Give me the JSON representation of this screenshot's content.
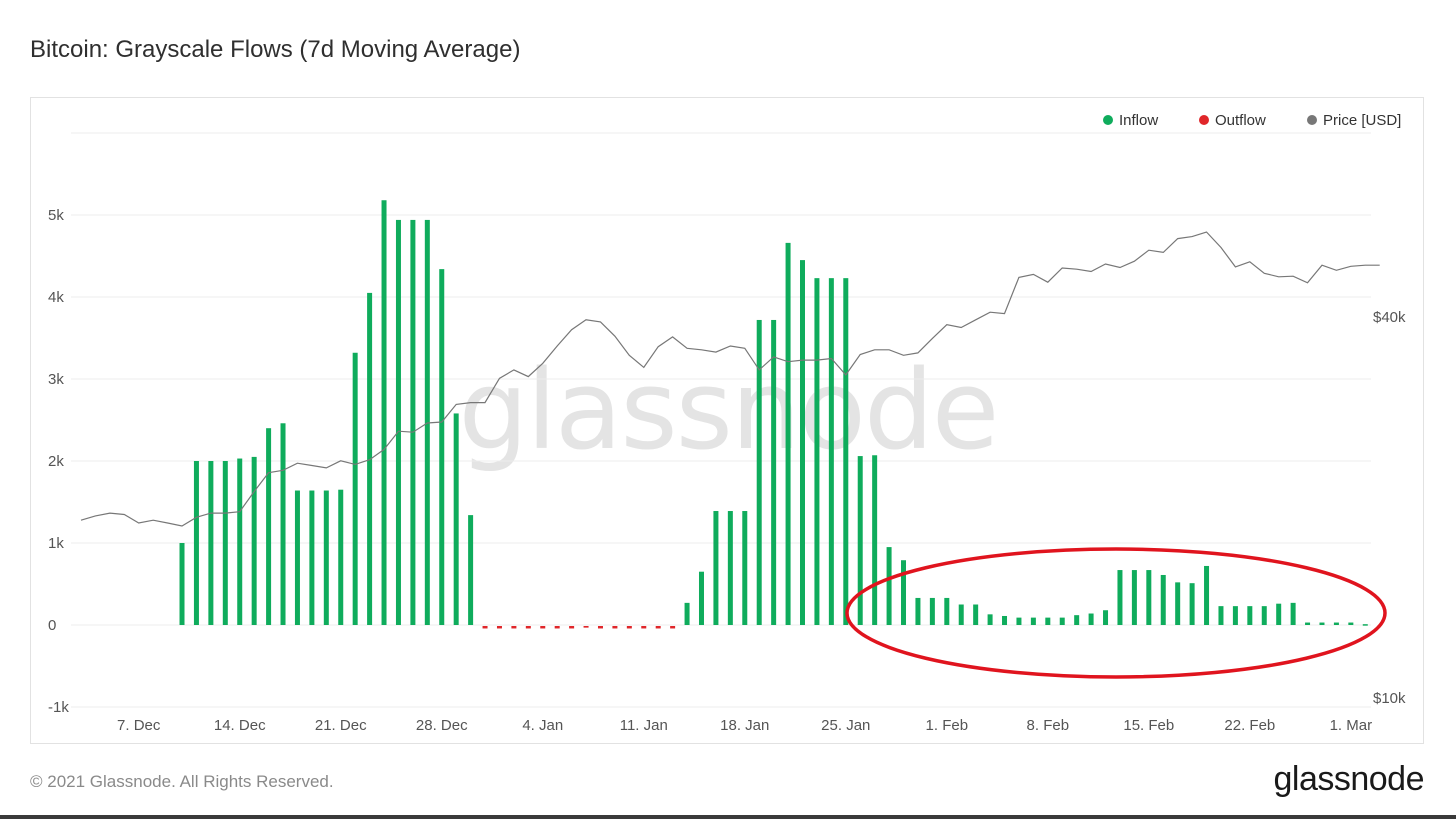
{
  "header": {
    "title": "Bitcoin: Grayscale Flows (7d Moving Average)"
  },
  "footer": {
    "copyright": "© 2021 Glassnode. All Rights Reserved.",
    "brand": "glassnode"
  },
  "watermark": "glassnode",
  "colors": {
    "inflow": "#0fac5c",
    "outflow": "#e0262a",
    "price": "#777777",
    "annotation": "#e0141e"
  },
  "chart_data": {
    "type": "bar",
    "title": "Bitcoin: Grayscale Flows (7d Moving Average)",
    "x_start": "2020-12-03",
    "x_end": "2021-03-03",
    "x_ticks": [
      "7. Dec",
      "14. Dec",
      "21. Dec",
      "28. Dec",
      "4. Jan",
      "11. Jan",
      "18. Jan",
      "25. Jan",
      "1. Feb",
      "8. Feb",
      "15. Feb",
      "22. Feb",
      "1. Mar"
    ],
    "y_ticks": [
      "5k",
      "4k",
      "3k",
      "2k",
      "1k",
      "0",
      "-1k"
    ],
    "y_range": [
      -1000,
      6000
    ],
    "y2_ticks": [
      "$40k",
      "$10k"
    ],
    "y2_scale": "log",
    "y2_range": [
      10000,
      60000
    ],
    "legend": {
      "position": "top-right",
      "items": [
        "Inflow",
        "Outflow",
        "Price [USD]"
      ]
    },
    "annotation": "red ellipse around 27 Jan - 2 Mar bars",
    "series": [
      {
        "name": "Inflow",
        "dates": [
          "2020-12-10",
          "2020-12-11",
          "2020-12-12",
          "2020-12-13",
          "2020-12-14",
          "2020-12-15",
          "2020-12-16",
          "2020-12-17",
          "2020-12-18",
          "2020-12-19",
          "2020-12-20",
          "2020-12-21",
          "2020-12-22",
          "2020-12-23",
          "2020-12-24",
          "2020-12-25",
          "2020-12-26",
          "2020-12-27",
          "2020-12-28",
          "2020-12-29",
          "2020-12-30",
          "2021-01-14",
          "2021-01-15",
          "2021-01-16",
          "2021-01-17",
          "2021-01-18",
          "2021-01-19",
          "2021-01-20",
          "2021-01-21",
          "2021-01-22",
          "2021-01-23",
          "2021-01-24",
          "2021-01-25",
          "2021-01-26",
          "2021-01-27",
          "2021-01-28",
          "2021-01-29",
          "2021-01-30",
          "2021-01-31",
          "2021-02-01",
          "2021-02-02",
          "2021-02-03",
          "2021-02-04",
          "2021-02-05",
          "2021-02-06",
          "2021-02-07",
          "2021-02-08",
          "2021-02-09",
          "2021-02-10",
          "2021-02-11",
          "2021-02-12",
          "2021-02-13",
          "2021-02-14",
          "2021-02-15",
          "2021-02-16",
          "2021-02-17",
          "2021-02-18",
          "2021-02-19",
          "2021-02-20",
          "2021-02-21",
          "2021-02-22",
          "2021-02-23",
          "2021-02-24",
          "2021-02-25",
          "2021-02-26",
          "2021-02-27",
          "2021-02-28",
          "2021-03-01",
          "2021-03-02"
        ],
        "values": [
          1000,
          2000,
          2000,
          2000,
          2030,
          2050,
          2400,
          2460,
          1640,
          1640,
          1640,
          1650,
          3320,
          4050,
          5180,
          4940,
          4940,
          4940,
          4340,
          2580,
          1340,
          270,
          650,
          1390,
          1390,
          1390,
          3720,
          3720,
          4660,
          4450,
          4230,
          4230,
          4230,
          2060,
          2070,
          950,
          790,
          330,
          330,
          330,
          250,
          250,
          130,
          110,
          90,
          90,
          90,
          90,
          120,
          140,
          180,
          670,
          670,
          670,
          610,
          520,
          510,
          720,
          230,
          230,
          230,
          230,
          260,
          270,
          30,
          30,
          30,
          30,
          10
        ]
      },
      {
        "name": "Outflow",
        "dates": [
          "2020-12-31",
          "2021-01-01",
          "2021-01-02",
          "2021-01-03",
          "2021-01-04",
          "2021-01-05",
          "2021-01-06",
          "2021-01-07",
          "2021-01-08",
          "2021-01-09",
          "2021-01-10",
          "2021-01-11",
          "2021-01-12",
          "2021-01-13"
        ],
        "values": [
          -30,
          -30,
          -30,
          -30,
          -30,
          -30,
          -30,
          -20,
          -30,
          -30,
          -30,
          -30,
          -30,
          -30
        ]
      },
      {
        "name": "Price [USD]",
        "dates": [
          "2020-12-03",
          "2020-12-04",
          "2020-12-05",
          "2020-12-06",
          "2020-12-07",
          "2020-12-08",
          "2020-12-09",
          "2020-12-10",
          "2020-12-11",
          "2020-12-12",
          "2020-12-13",
          "2020-12-14",
          "2020-12-15",
          "2020-12-16",
          "2020-12-17",
          "2020-12-18",
          "2020-12-19",
          "2020-12-20",
          "2020-12-21",
          "2020-12-22",
          "2020-12-23",
          "2020-12-24",
          "2020-12-25",
          "2020-12-26",
          "2020-12-27",
          "2020-12-28",
          "2020-12-29",
          "2020-12-30",
          "2020-12-31",
          "2021-01-01",
          "2021-01-02",
          "2021-01-03",
          "2021-01-04",
          "2021-01-05",
          "2021-01-06",
          "2021-01-07",
          "2021-01-08",
          "2021-01-09",
          "2021-01-10",
          "2021-01-11",
          "2021-01-12",
          "2021-01-13",
          "2021-01-14",
          "2021-01-15",
          "2021-01-16",
          "2021-01-17",
          "2021-01-18",
          "2021-01-19",
          "2021-01-20",
          "2021-01-21",
          "2021-01-22",
          "2021-01-23",
          "2021-01-24",
          "2021-01-25",
          "2021-01-26",
          "2021-01-27",
          "2021-01-28",
          "2021-01-29",
          "2021-01-30",
          "2021-01-31",
          "2021-02-01",
          "2021-02-02",
          "2021-02-03",
          "2021-02-04",
          "2021-02-05",
          "2021-02-06",
          "2021-02-07",
          "2021-02-08",
          "2021-02-09",
          "2021-02-10",
          "2021-02-11",
          "2021-02-12",
          "2021-02-13",
          "2021-02-14",
          "2021-02-15",
          "2021-02-16",
          "2021-02-17",
          "2021-02-18",
          "2021-02-19",
          "2021-02-20",
          "2021-02-21",
          "2021-02-22",
          "2021-02-23",
          "2021-02-24",
          "2021-02-25",
          "2021-02-26",
          "2021-02-27",
          "2021-02-28",
          "2021-03-01",
          "2021-03-02",
          "2021-03-03"
        ],
        "values": [
          19100,
          19400,
          19600,
          19500,
          18900,
          19100,
          18900,
          18700,
          19300,
          19600,
          19600,
          19700,
          21200,
          22700,
          22900,
          23500,
          23300,
          23100,
          23700,
          23400,
          23800,
          24700,
          26400,
          26300,
          27200,
          27300,
          29100,
          29300,
          29300,
          32000,
          33000,
          32200,
          33800,
          36000,
          38200,
          39600,
          39300,
          37300,
          34800,
          33300,
          35900,
          37200,
          35700,
          35500,
          35200,
          36000,
          35700,
          33000,
          34600,
          34000,
          34200,
          34200,
          34400,
          32400,
          34900,
          35500,
          35500,
          34800,
          35100,
          37000,
          38900,
          38500,
          39600,
          40700,
          40500,
          46200,
          46700,
          45400,
          47800,
          47600,
          47200,
          48500,
          47900,
          49000,
          51000,
          50600,
          53200,
          53600,
          54500,
          51500,
          48000,
          48900,
          46900,
          46300,
          46400,
          45300,
          48300,
          47400,
          48100,
          48300,
          48300
        ]
      }
    ]
  }
}
